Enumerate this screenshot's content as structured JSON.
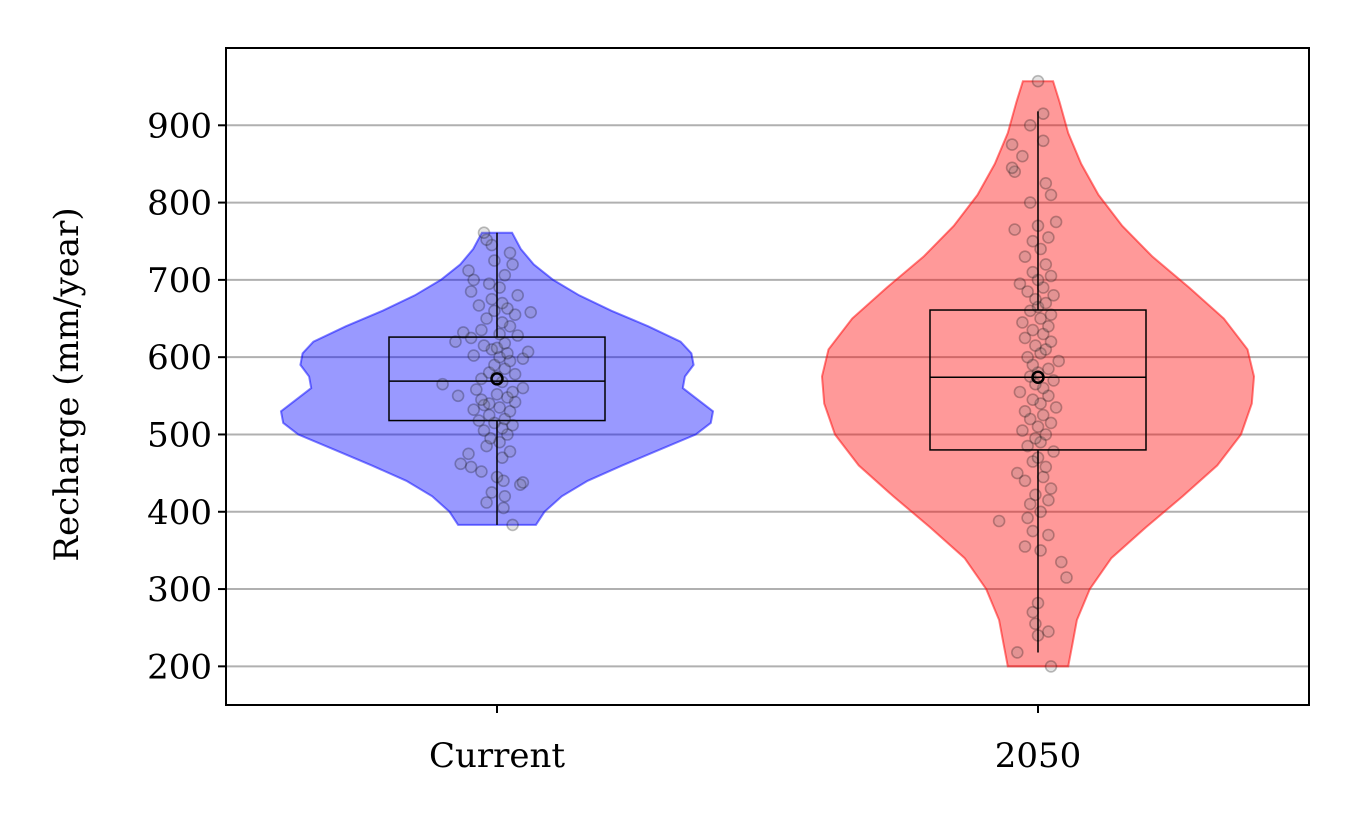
{
  "chart_data": {
    "type": "violin",
    "ylabel": "Recharge (mm/year)",
    "xlabel": "",
    "categories": [
      "Current",
      "2050"
    ],
    "ylim": [
      150,
      1000
    ],
    "yticks": [
      200,
      300,
      400,
      500,
      600,
      700,
      800,
      900
    ],
    "grid": "horizontal",
    "colors": {
      "Current": "#0000ff",
      "2050": "#ff0000",
      "points": "#000000",
      "grid": "#b0b0b0"
    },
    "series": [
      {
        "category": "Current",
        "min": 383,
        "q1": 518,
        "median": 569,
        "q3": 626,
        "max": 761,
        "mean": 572,
        "density": [
          [
            383,
            0.18
          ],
          [
            400,
            0.22
          ],
          [
            420,
            0.3
          ],
          [
            440,
            0.42
          ],
          [
            460,
            0.58
          ],
          [
            480,
            0.75
          ],
          [
            500,
            0.92
          ],
          [
            515,
            0.99
          ],
          [
            530,
            1.0
          ],
          [
            545,
            0.93
          ],
          [
            560,
            0.86
          ],
          [
            575,
            0.87
          ],
          [
            590,
            0.91
          ],
          [
            605,
            0.9
          ],
          [
            620,
            0.85
          ],
          [
            640,
            0.7
          ],
          [
            660,
            0.53
          ],
          [
            680,
            0.38
          ],
          [
            700,
            0.26
          ],
          [
            720,
            0.17
          ],
          [
            740,
            0.11
          ],
          [
            761,
            0.07
          ]
        ],
        "points": [
          [
            383,
            0.12
          ],
          [
            405,
            0.05
          ],
          [
            412,
            -0.08
          ],
          [
            420,
            0.06
          ],
          [
            425,
            -0.04
          ],
          [
            435,
            0.18
          ],
          [
            438,
            0.2
          ],
          [
            440,
            0.05
          ],
          [
            445,
            0.0
          ],
          [
            452,
            -0.12
          ],
          [
            458,
            -0.2
          ],
          [
            462,
            -0.28
          ],
          [
            470,
            0.04
          ],
          [
            475,
            -0.22
          ],
          [
            478,
            0.1
          ],
          [
            485,
            -0.08
          ],
          [
            490,
            0.02
          ],
          [
            495,
            -0.05
          ],
          [
            500,
            0.08
          ],
          [
            505,
            -0.1
          ],
          [
            508,
            0.04
          ],
          [
            512,
            0.12
          ],
          [
            515,
            -0.02
          ],
          [
            518,
            -0.14
          ],
          [
            520,
            0.06
          ],
          [
            525,
            -0.06
          ],
          [
            530,
            0.1
          ],
          [
            532,
            -0.18
          ],
          [
            535,
            0.02
          ],
          [
            538,
            -0.1
          ],
          [
            540,
            -0.06
          ],
          [
            542,
            0.14
          ],
          [
            545,
            -0.12
          ],
          [
            548,
            0.08
          ],
          [
            550,
            -0.3
          ],
          [
            552,
            0.0
          ],
          [
            555,
            0.12
          ],
          [
            558,
            -0.16
          ],
          [
            560,
            0.2
          ],
          [
            565,
            -0.42
          ],
          [
            568,
            0.04
          ],
          [
            572,
            -0.12
          ],
          [
            575,
            0.0
          ],
          [
            578,
            0.14
          ],
          [
            580,
            -0.06
          ],
          [
            585,
            0.06
          ],
          [
            590,
            -0.02
          ],
          [
            595,
            0.1
          ],
          [
            598,
            0.2
          ],
          [
            600,
            0.02
          ],
          [
            602,
            -0.18
          ],
          [
            605,
            0.08
          ],
          [
            607,
            0.24
          ],
          [
            610,
            -0.04
          ],
          [
            612,
            0.0
          ],
          [
            615,
            -0.1
          ],
          [
            618,
            0.06
          ],
          [
            620,
            -0.32
          ],
          [
            625,
            -0.2
          ],
          [
            628,
            0.16
          ],
          [
            630,
            0.02
          ],
          [
            632,
            -0.26
          ],
          [
            635,
            -0.12
          ],
          [
            640,
            0.1
          ],
          [
            645,
            0.04
          ],
          [
            650,
            -0.08
          ],
          [
            655,
            0.14
          ],
          [
            658,
            0.26
          ],
          [
            660,
            -0.02
          ],
          [
            663,
            0.08
          ],
          [
            667,
            -0.14
          ],
          [
            670,
            0.04
          ],
          [
            675,
            -0.04
          ],
          [
            680,
            0.16
          ],
          [
            685,
            -0.2
          ],
          [
            690,
            0.02
          ],
          [
            695,
            -0.06
          ],
          [
            700,
            -0.18
          ],
          [
            706,
            0.06
          ],
          [
            712,
            -0.22
          ],
          [
            720,
            0.12
          ],
          [
            725,
            -0.02
          ],
          [
            735,
            0.1
          ],
          [
            745,
            -0.04
          ],
          [
            752,
            -0.08
          ],
          [
            761,
            -0.1
          ]
        ]
      },
      {
        "category": "2050",
        "min": 218,
        "q1": 480,
        "median": 574,
        "q3": 661,
        "max": 918,
        "mean": 574,
        "density": [
          [
            200,
            0.14
          ],
          [
            230,
            0.16
          ],
          [
            260,
            0.18
          ],
          [
            300,
            0.24
          ],
          [
            340,
            0.34
          ],
          [
            380,
            0.5
          ],
          [
            420,
            0.67
          ],
          [
            460,
            0.83
          ],
          [
            500,
            0.94
          ],
          [
            540,
            0.99
          ],
          [
            575,
            1.0
          ],
          [
            610,
            0.97
          ],
          [
            650,
            0.86
          ],
          [
            690,
            0.7
          ],
          [
            730,
            0.53
          ],
          [
            770,
            0.39
          ],
          [
            810,
            0.28
          ],
          [
            850,
            0.2
          ],
          [
            890,
            0.14
          ],
          [
            930,
            0.1
          ],
          [
            957,
            0.07
          ]
        ],
        "points": [
          [
            200,
            0.1
          ],
          [
            218,
            -0.16
          ],
          [
            240,
            0.0
          ],
          [
            245,
            0.08
          ],
          [
            255,
            -0.02
          ],
          [
            270,
            -0.04
          ],
          [
            282,
            0.0
          ],
          [
            315,
            0.22
          ],
          [
            335,
            0.18
          ],
          [
            350,
            0.02
          ],
          [
            355,
            -0.1
          ],
          [
            370,
            0.08
          ],
          [
            375,
            -0.04
          ],
          [
            388,
            -0.3
          ],
          [
            392,
            -0.08
          ],
          [
            400,
            0.02
          ],
          [
            410,
            -0.06
          ],
          [
            415,
            0.08
          ],
          [
            422,
            -0.02
          ],
          [
            430,
            0.1
          ],
          [
            440,
            -0.1
          ],
          [
            445,
            0.04
          ],
          [
            450,
            -0.16
          ],
          [
            458,
            0.06
          ],
          [
            465,
            -0.04
          ],
          [
            470,
            0.0
          ],
          [
            478,
            0.12
          ],
          [
            485,
            -0.08
          ],
          [
            490,
            0.02
          ],
          [
            495,
            -0.02
          ],
          [
            500,
            0.06
          ],
          [
            505,
            -0.12
          ],
          [
            510,
            0.0
          ],
          [
            515,
            0.1
          ],
          [
            520,
            -0.06
          ],
          [
            525,
            0.04
          ],
          [
            530,
            -0.1
          ],
          [
            535,
            0.14
          ],
          [
            540,
            0.02
          ],
          [
            545,
            -0.04
          ],
          [
            550,
            0.08
          ],
          [
            555,
            -0.14
          ],
          [
            560,
            0.04
          ],
          [
            565,
            -0.02
          ],
          [
            570,
            0.12
          ],
          [
            575,
            -0.06
          ],
          [
            580,
            0.0
          ],
          [
            585,
            0.08
          ],
          [
            590,
            -0.04
          ],
          [
            595,
            0.16
          ],
          [
            600,
            -0.08
          ],
          [
            605,
            0.02
          ],
          [
            610,
            0.06
          ],
          [
            615,
            -0.02
          ],
          [
            620,
            0.1
          ],
          [
            625,
            -0.1
          ],
          [
            630,
            0.04
          ],
          [
            635,
            -0.04
          ],
          [
            640,
            0.08
          ],
          [
            645,
            -0.12
          ],
          [
            650,
            0.02
          ],
          [
            655,
            0.1
          ],
          [
            660,
            -0.06
          ],
          [
            665,
            0.0
          ],
          [
            670,
            0.06
          ],
          [
            675,
            -0.02
          ],
          [
            680,
            0.12
          ],
          [
            685,
            -0.08
          ],
          [
            690,
            0.04
          ],
          [
            695,
            -0.14
          ],
          [
            700,
            0.0
          ],
          [
            705,
            0.1
          ],
          [
            710,
            -0.04
          ],
          [
            720,
            0.06
          ],
          [
            730,
            -0.1
          ],
          [
            740,
            0.02
          ],
          [
            750,
            -0.04
          ],
          [
            755,
            0.08
          ],
          [
            765,
            -0.18
          ],
          [
            770,
            0.0
          ],
          [
            775,
            0.14
          ],
          [
            800,
            -0.06
          ],
          [
            810,
            0.1
          ],
          [
            825,
            0.06
          ],
          [
            840,
            -0.18
          ],
          [
            845,
            -0.2
          ],
          [
            860,
            -0.12
          ],
          [
            875,
            -0.2
          ],
          [
            880,
            0.04
          ],
          [
            900,
            -0.06
          ],
          [
            915,
            0.04
          ],
          [
            957,
            0.0
          ]
        ]
      }
    ]
  }
}
